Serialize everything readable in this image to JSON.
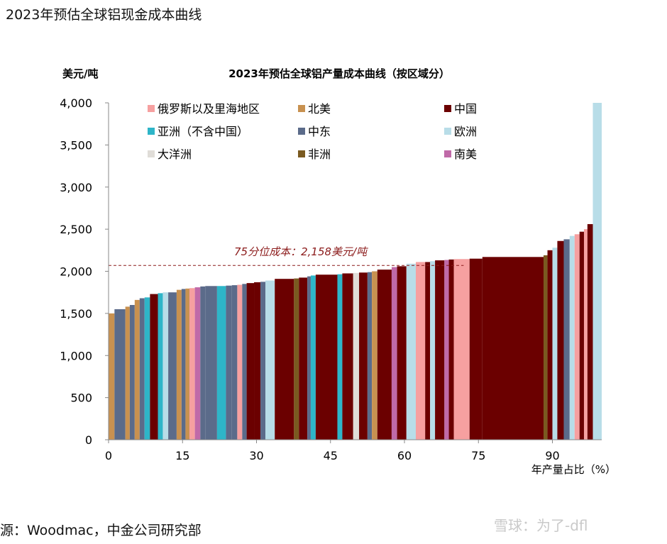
{
  "header": {
    "title": "2023年预估全球铝现金成本曲线"
  },
  "footer": {
    "source": "源：Woodmac，中金公司研究部",
    "watermark": "雪球：为了-dfl"
  },
  "chart_data": {
    "type": "bar",
    "title": "2023年预估全球铝产量成本曲线（按区域分）",
    "ylabel": "美元/吨",
    "xlabel": "年产量占比（%）",
    "xlim": [
      0,
      100
    ],
    "ylim": [
      0,
      4000
    ],
    "x_ticks": [
      "0",
      "15",
      "30",
      "45",
      "60",
      "75",
      "90"
    ],
    "y_ticks": [
      "0",
      "500",
      "1,000",
      "1,500",
      "2,000",
      "2,500",
      "3,000",
      "3,500",
      "4,000"
    ],
    "grid": false,
    "legend_position": "top",
    "reference_line": {
      "value": 2158,
      "label": "75分位成本：2,158美元/吨",
      "color": "#8b1a1a"
    },
    "regions": [
      {
        "name": "俄罗斯以及里海地区",
        "color": "#f6a0a0"
      },
      {
        "name": "北美",
        "color": "#c89150"
      },
      {
        "name": "中国",
        "color": "#6b0000"
      },
      {
        "name": "亚洲（不含中国）",
        "color": "#2eb5c8"
      },
      {
        "name": "中东",
        "color": "#5b6b8a"
      },
      {
        "name": "欧洲",
        "color": "#b8dde8"
      },
      {
        "name": "大洋洲",
        "color": "#e0ddd8"
      },
      {
        "name": "非洲",
        "color": "#7a5a20"
      },
      {
        "name": "南美",
        "color": "#c06aa8"
      }
    ],
    "bars": [
      {
        "x0": 0,
        "x1": 1.2,
        "v": 1500,
        "r": "北美"
      },
      {
        "x0": 1.2,
        "x1": 3.4,
        "v": 1550,
        "r": "中东"
      },
      {
        "x0": 3.4,
        "x1": 4.3,
        "v": 1580,
        "r": "北美"
      },
      {
        "x0": 4.3,
        "x1": 5.3,
        "v": 1600,
        "r": "中东"
      },
      {
        "x0": 5.3,
        "x1": 6.3,
        "v": 1660,
        "r": "北美"
      },
      {
        "x0": 6.3,
        "x1": 7.3,
        "v": 1680,
        "r": "中东"
      },
      {
        "x0": 7.3,
        "x1": 8.4,
        "v": 1690,
        "r": "亚洲（不含中国）"
      },
      {
        "x0": 8.4,
        "x1": 10.0,
        "v": 1730,
        "r": "中国"
      },
      {
        "x0": 10.0,
        "x1": 11.0,
        "v": 1740,
        "r": "亚洲（不含中国）"
      },
      {
        "x0": 11.0,
        "x1": 12.1,
        "v": 1750,
        "r": "欧洲"
      },
      {
        "x0": 12.1,
        "x1": 13.8,
        "v": 1750,
        "r": "中东"
      },
      {
        "x0": 13.8,
        "x1": 14.8,
        "v": 1780,
        "r": "北美"
      },
      {
        "x0": 14.8,
        "x1": 15.6,
        "v": 1790,
        "r": "中东"
      },
      {
        "x0": 15.6,
        "x1": 16.4,
        "v": 1795,
        "r": "北美"
      },
      {
        "x0": 16.4,
        "x1": 17.5,
        "v": 1800,
        "r": "俄罗斯以及里海地区"
      },
      {
        "x0": 17.5,
        "x1": 18.6,
        "v": 1810,
        "r": "南美"
      },
      {
        "x0": 18.6,
        "x1": 19.6,
        "v": 1820,
        "r": "中东"
      },
      {
        "x0": 19.6,
        "x1": 22.0,
        "v": 1825,
        "r": "中东"
      },
      {
        "x0": 22.0,
        "x1": 23.8,
        "v": 1825,
        "r": "亚洲（不含中国）"
      },
      {
        "x0": 23.8,
        "x1": 25.0,
        "v": 1830,
        "r": "中东"
      },
      {
        "x0": 25.0,
        "x1": 26.1,
        "v": 1835,
        "r": "中东"
      },
      {
        "x0": 26.1,
        "x1": 27.1,
        "v": 1840,
        "r": "俄罗斯以及里海地区"
      },
      {
        "x0": 27.1,
        "x1": 28.0,
        "v": 1850,
        "r": "中东"
      },
      {
        "x0": 28.0,
        "x1": 29.5,
        "v": 1860,
        "r": "中国"
      },
      {
        "x0": 29.5,
        "x1": 30.8,
        "v": 1870,
        "r": "中国"
      },
      {
        "x0": 30.8,
        "x1": 31.8,
        "v": 1875,
        "r": "中东"
      },
      {
        "x0": 31.8,
        "x1": 33.7,
        "v": 1890,
        "r": "欧洲"
      },
      {
        "x0": 33.7,
        "x1": 37.6,
        "v": 1910,
        "r": "中国"
      },
      {
        "x0": 37.6,
        "x1": 38.6,
        "v": 1915,
        "r": "非洲"
      },
      {
        "x0": 38.6,
        "x1": 40.3,
        "v": 1925,
        "r": "中国"
      },
      {
        "x0": 40.3,
        "x1": 41.0,
        "v": 1940,
        "r": "中东"
      },
      {
        "x0": 41.0,
        "x1": 42.0,
        "v": 1950,
        "r": "亚洲（不含中国）"
      },
      {
        "x0": 42.0,
        "x1": 46.4,
        "v": 1960,
        "r": "中国"
      },
      {
        "x0": 46.4,
        "x1": 47.4,
        "v": 1965,
        "r": "亚洲（不含中国）"
      },
      {
        "x0": 47.4,
        "x1": 49.6,
        "v": 1975,
        "r": "中国"
      },
      {
        "x0": 49.6,
        "x1": 50.8,
        "v": 1980,
        "r": "大洋洲"
      },
      {
        "x0": 50.8,
        "x1": 52.5,
        "v": 1985,
        "r": "中国"
      },
      {
        "x0": 52.5,
        "x1": 53.4,
        "v": 1990,
        "r": "中东"
      },
      {
        "x0": 53.4,
        "x1": 54.5,
        "v": 2000,
        "r": "北美"
      },
      {
        "x0": 54.5,
        "x1": 57.4,
        "v": 2020,
        "r": "中国"
      },
      {
        "x0": 57.4,
        "x1": 58.5,
        "v": 2050,
        "r": "南美"
      },
      {
        "x0": 58.5,
        "x1": 60.4,
        "v": 2060,
        "r": "中国"
      },
      {
        "x0": 60.4,
        "x1": 62.3,
        "v": 2090,
        "r": "欧洲"
      },
      {
        "x0": 62.3,
        "x1": 64.2,
        "v": 2110,
        "r": "俄罗斯以及里海地区"
      },
      {
        "x0": 64.2,
        "x1": 65.2,
        "v": 2110,
        "r": "中国"
      },
      {
        "x0": 65.2,
        "x1": 66.2,
        "v": 2120,
        "r": "欧洲"
      },
      {
        "x0": 66.2,
        "x1": 68.1,
        "v": 2130,
        "r": "中国"
      },
      {
        "x0": 68.1,
        "x1": 69.0,
        "v": 2135,
        "r": "南美"
      },
      {
        "x0": 69.0,
        "x1": 70.0,
        "v": 2140,
        "r": "中国"
      },
      {
        "x0": 70.0,
        "x1": 73.2,
        "v": 2145,
        "r": "俄罗斯以及里海地区"
      },
      {
        "x0": 73.2,
        "x1": 75.8,
        "v": 2150,
        "r": "中国"
      },
      {
        "x0": 75.8,
        "x1": 88.2,
        "v": 2170,
        "r": "中国"
      },
      {
        "x0": 88.2,
        "x1": 89.0,
        "v": 2190,
        "r": "非洲"
      },
      {
        "x0": 89.0,
        "x1": 90.0,
        "v": 2250,
        "r": "中国"
      },
      {
        "x0": 90.0,
        "x1": 91.0,
        "v": 2280,
        "r": "欧洲"
      },
      {
        "x0": 91.0,
        "x1": 92.3,
        "v": 2360,
        "r": "中国"
      },
      {
        "x0": 92.3,
        "x1": 93.5,
        "v": 2380,
        "r": "中东"
      },
      {
        "x0": 93.5,
        "x1": 94.5,
        "v": 2420,
        "r": "欧洲"
      },
      {
        "x0": 94.5,
        "x1": 95.5,
        "v": 2440,
        "r": "俄罗斯以及里海地区"
      },
      {
        "x0": 95.5,
        "x1": 96.4,
        "v": 2470,
        "r": "中国"
      },
      {
        "x0": 96.4,
        "x1": 97.1,
        "v": 2500,
        "r": "俄罗斯以及里海地区"
      },
      {
        "x0": 97.1,
        "x1": 98.2,
        "v": 2560,
        "r": "中国"
      },
      {
        "x0": 98.2,
        "x1": 100.0,
        "v": 4000,
        "r": "欧洲"
      }
    ]
  }
}
